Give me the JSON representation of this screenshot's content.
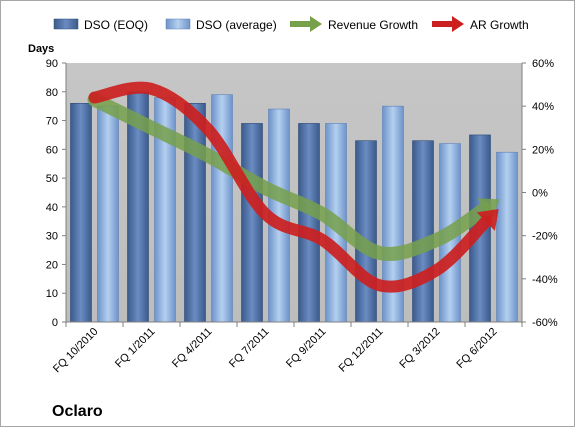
{
  "chart_data": {
    "type": "bar",
    "categories": [
      "FQ 10/2010",
      "FQ 1/2011",
      "FQ 4/2011",
      "FQ 7/2011",
      "FQ 9/2011",
      "FQ 12/2011",
      "FQ 3/2012",
      "FQ 6/2012"
    ],
    "series": [
      {
        "name": "DSO (EOQ)",
        "type": "bar",
        "axis": "left",
        "color": "#4f6fa3",
        "values": [
          76,
          80,
          76,
          69,
          69,
          63,
          63,
          65
        ]
      },
      {
        "name": "DSO (average)",
        "type": "bar",
        "axis": "left",
        "color": "#8fb3e0",
        "values": [
          75,
          78,
          79,
          74,
          69,
          75,
          62,
          59
        ]
      },
      {
        "name": "Revenue Growth",
        "type": "arrow-line",
        "axis": "right",
        "color": "#77a04b",
        "values": [
          0.43,
          0.3,
          0.17,
          0.02,
          -0.1,
          -0.28,
          -0.22,
          -0.05
        ]
      },
      {
        "name": "AR Growth",
        "type": "arrow-line",
        "axis": "right",
        "color": "#cc1f1f",
        "values": [
          0.44,
          0.48,
          0.29,
          -0.1,
          -0.22,
          -0.43,
          -0.36,
          -0.1
        ]
      }
    ],
    "ylabel": "Days",
    "ylim": [
      0,
      90
    ],
    "yticks": [
      0,
      10,
      20,
      30,
      40,
      50,
      60,
      70,
      80,
      90
    ],
    "y2lim": [
      -0.6,
      0.6
    ],
    "y2ticks": [
      -0.6,
      -0.4,
      -0.2,
      0,
      0.2,
      0.4,
      0.6
    ],
    "y2tick_labels": [
      "-60%",
      "-40%",
      "-20%",
      "0%",
      "20%",
      "40%",
      "60%"
    ],
    "legend_position": "top",
    "grid": false,
    "plot_background": "#c0c0c0",
    "annotation": "Oclaro"
  }
}
